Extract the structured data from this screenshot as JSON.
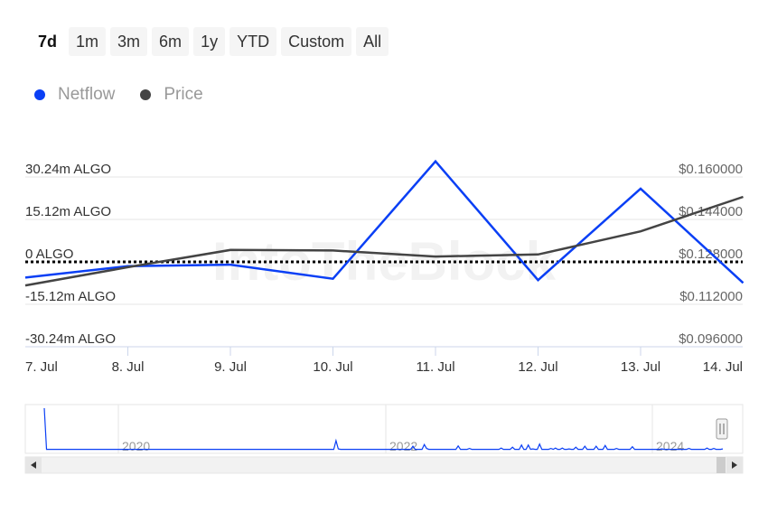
{
  "range_selector": {
    "buttons": [
      "7d",
      "1m",
      "3m",
      "6m",
      "1y",
      "YTD",
      "Custom",
      "All"
    ],
    "selected": "7d"
  },
  "legend": [
    {
      "label": "Netflow",
      "color": "#0a3ff5"
    },
    {
      "label": "Price",
      "color": "#444444"
    }
  ],
  "watermark": "IntoTheBlock",
  "chart_data": {
    "type": "line",
    "x": [
      "7. Jul",
      "8. Jul",
      "9. Jul",
      "10. Jul",
      "11. Jul",
      "12. Jul",
      "13. Jul",
      "14. Jul"
    ],
    "x_tick_labels": [
      "7. Jul",
      "8. Jul",
      "9. Jul",
      "10. Jul",
      "11. Jul",
      "12. Jul",
      "13. Jul",
      "14. Jul"
    ],
    "series": [
      {
        "name": "Netflow",
        "axis": "left",
        "color": "#0a3ff5",
        "values": [
          -5.6,
          -1.5,
          -1.0,
          -6.0,
          35.8,
          -6.5,
          26.1,
          -7.5
        ]
      },
      {
        "name": "Price",
        "axis": "right",
        "color": "#444444",
        "values": [
          0.1191,
          0.126,
          0.1325,
          0.1323,
          0.13,
          0.1308,
          0.1395,
          0.1525
        ]
      }
    ],
    "left_axis": {
      "tick_labels": [
        "30.24m ALGO",
        "15.12m ALGO",
        "0 ALGO",
        "-15.12m ALGO",
        "-30.24m ALGO"
      ],
      "tick_values": [
        30.24,
        15.12,
        0,
        -15.12,
        -30.24
      ],
      "unit": "m ALGO"
    },
    "right_axis": {
      "tick_labels": [
        "$0.160000",
        "$0.144000",
        "$0.128000",
        "$0.112000",
        "$0.096000"
      ],
      "tick_values": [
        0.16,
        0.144,
        0.128,
        0.112,
        0.096
      ]
    },
    "zero_line": {
      "style": "dotted",
      "value": 0
    },
    "grid": true,
    "legend_position": "top-left",
    "navigator": {
      "year_labels": [
        "2020",
        "2022",
        "2024"
      ],
      "values": [
        1.0,
        0.05,
        0.05,
        0.05,
        0.05,
        0.05,
        0.05,
        0.05,
        0.05,
        0.05,
        0.05,
        0.05,
        0.05,
        0.05,
        0.05,
        0.05,
        0.05,
        0.05,
        0.05,
        0.05,
        0.05,
        0.05,
        0.05,
        0.05,
        0.05,
        0.05,
        0.05,
        0.05,
        0.05,
        0.05,
        0.05,
        0.05,
        0.05,
        0.05,
        0.05,
        0.05,
        0.05,
        0.05,
        0.05,
        0.05,
        0.05,
        0.05,
        0.05,
        0.05,
        0.05,
        0.05,
        0.05,
        0.05,
        0.05,
        0.05,
        0.05,
        0.05,
        0.05,
        0.05,
        0.05,
        0.05,
        0.05,
        0.05,
        0.05,
        0.05,
        0.05,
        0.05,
        0.05,
        0.05,
        0.05,
        0.05,
        0.05,
        0.05,
        0.05,
        0.05,
        0.05,
        0.05,
        0.05,
        0.05,
        0.05,
        0.05,
        0.05,
        0.05,
        0.05,
        0.05,
        0.05,
        0.05,
        0.05,
        0.05,
        0.05,
        0.05,
        0.05,
        0.05,
        0.05,
        0.05,
        0.05,
        0.05,
        0.05,
        0.05,
        0.05,
        0.05,
        0.05,
        0.05,
        0.05,
        0.05,
        0.05,
        0.05,
        0.05,
        0.05,
        0.05,
        0.05,
        0.05,
        0.05,
        0.05,
        0.05,
        0.05,
        0.05,
        0.05,
        0.05,
        0.05,
        0.05,
        0.05,
        0.05,
        0.05,
        0.05,
        0.05,
        0.05,
        0.05,
        0.05,
        0.05,
        0.05,
        0.05,
        0.05,
        0.05,
        0.25,
        0.06,
        0.05,
        0.05,
        0.05,
        0.05,
        0.05,
        0.05,
        0.05,
        0.05,
        0.05,
        0.05,
        0.05,
        0.05,
        0.05,
        0.05,
        0.05,
        0.05,
        0.05,
        0.05,
        0.05,
        0.05,
        0.05,
        0.05,
        0.05,
        0.05,
        0.05,
        0.05,
        0.05,
        0.05,
        0.05,
        0.05,
        0.05,
        0.05,
        0.12,
        0.05,
        0.05,
        0.05,
        0.05,
        0.16,
        0.07,
        0.05,
        0.05,
        0.05,
        0.05,
        0.05,
        0.05,
        0.05,
        0.05,
        0.05,
        0.05,
        0.05,
        0.05,
        0.05,
        0.13,
        0.05,
        0.05,
        0.05,
        0.05,
        0.07,
        0.05,
        0.05,
        0.05,
        0.05,
        0.05,
        0.05,
        0.05,
        0.05,
        0.05,
        0.05,
        0.05,
        0.05,
        0.05,
        0.08,
        0.05,
        0.05,
        0.05,
        0.05,
        0.1,
        0.05,
        0.05,
        0.05,
        0.15,
        0.05,
        0.05,
        0.15,
        0.05,
        0.06,
        0.05,
        0.05,
        0.17,
        0.05,
        0.05,
        0.05,
        0.05,
        0.07,
        0.05,
        0.08,
        0.05,
        0.05,
        0.08,
        0.05,
        0.05,
        0.06,
        0.05,
        0.05,
        0.1,
        0.05,
        0.05,
        0.05,
        0.12,
        0.05,
        0.05,
        0.05,
        0.05,
        0.12,
        0.05,
        0.05,
        0.05,
        0.14,
        0.05,
        0.05,
        0.05,
        0.05,
        0.07,
        0.05,
        0.05,
        0.05,
        0.05,
        0.05,
        0.05,
        0.11,
        0.05,
        0.05,
        0.05,
        0.05,
        0.05,
        0.05,
        0.05,
        0.05,
        0.05,
        0.05,
        0.05,
        0.05,
        0.06,
        0.05,
        0.05,
        0.05,
        0.05,
        0.05,
        0.05,
        0.05,
        0.05,
        0.05,
        0.05,
        0.05,
        0.07,
        0.05,
        0.05,
        0.05,
        0.05,
        0.05,
        0.05,
        0.05,
        0.08,
        0.05,
        0.05,
        0.07,
        0.05,
        0.05,
        0.05,
        0.06
      ]
    }
  }
}
